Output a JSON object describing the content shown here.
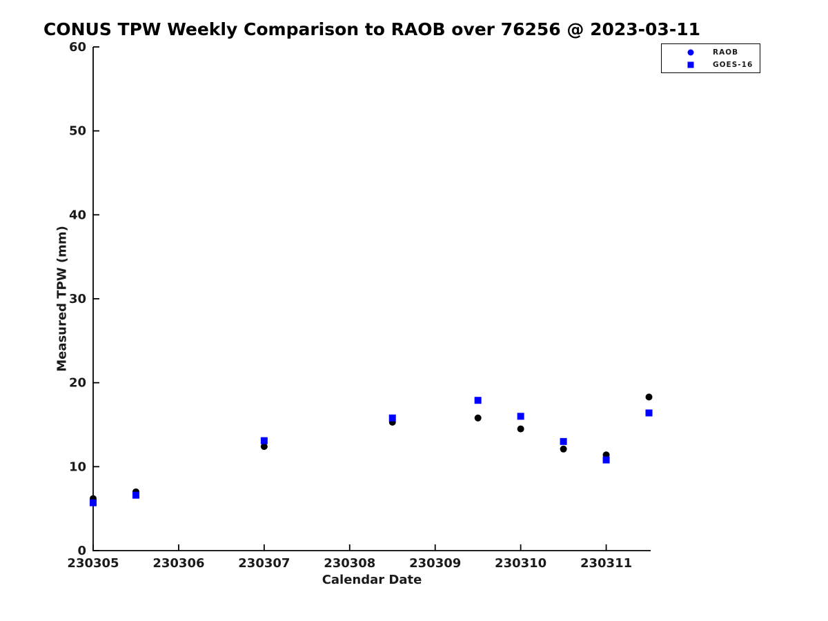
{
  "title": "CONUS TPW Weekly Comparison to RAOB over 76256 @ 2023-03-11",
  "colors": {
    "raob_marker": "#000000",
    "goes_marker": "#0000ff",
    "legend_marker": "#0000ff",
    "axis": "#000000",
    "background": "#ffffff"
  },
  "legend": {
    "entries": [
      {
        "label": "RAOB",
        "marker": "circle"
      },
      {
        "label": "GOES-16",
        "marker": "square"
      }
    ],
    "position": "top-right-outside"
  },
  "chart_data": {
    "type": "scatter",
    "title": "CONUS TPW Weekly Comparison to RAOB over 76256 @ 2023-03-11",
    "xlabel": "Calendar Date",
    "ylabel": "Measured TPW (mm)",
    "xlim": [
      230305,
      230311.52
    ],
    "ylim": [
      0,
      60
    ],
    "xticks": [
      230305,
      230306,
      230307,
      230308,
      230309,
      230310,
      230311
    ],
    "yticks": [
      0,
      10,
      20,
      30,
      40,
      50,
      60
    ],
    "grid": false,
    "legend_position": "top-right-outside",
    "series": [
      {
        "name": "RAOB",
        "marker": "circle",
        "color": "#000000",
        "legend_color": "#0000ff",
        "x": [
          230305.0,
          230305.5,
          230307.0,
          230308.5,
          230309.5,
          230310.0,
          230310.5,
          230311.0,
          230311.5
        ],
        "y": [
          6.2,
          7.0,
          12.4,
          15.3,
          15.8,
          14.5,
          12.1,
          11.4,
          18.3
        ]
      },
      {
        "name": "GOES-16",
        "marker": "square",
        "color": "#0000ff",
        "legend_color": "#0000ff",
        "x": [
          230305.0,
          230305.5,
          230307.0,
          230308.5,
          230309.5,
          230310.0,
          230310.5,
          230311.0,
          230311.5
        ],
        "y": [
          5.7,
          6.6,
          13.1,
          15.8,
          17.9,
          16.0,
          13.0,
          10.8,
          16.4
        ]
      }
    ]
  }
}
